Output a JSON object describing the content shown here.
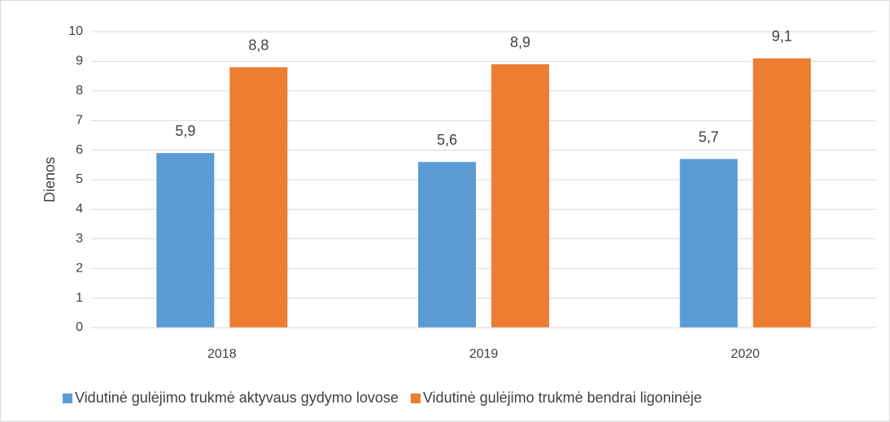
{
  "chart_data": {
    "type": "bar",
    "categories": [
      "2018",
      "2019",
      "2020"
    ],
    "series": [
      {
        "name": "Vidutinė gulėjimo trukmė aktyvaus gydymo lovose",
        "color": "#5b9bd5",
        "values": [
          5.9,
          5.6,
          5.7
        ],
        "value_labels": [
          "5,9",
          "5,6",
          "5,7"
        ]
      },
      {
        "name": "Vidutinė gulėjimo trukmė bendrai ligoninėje",
        "color": "#ed7d31",
        "values": [
          8.8,
          8.9,
          9.1
        ],
        "value_labels": [
          "8,8",
          "8,9",
          "9,1"
        ]
      }
    ],
    "ylabel": "Dienos",
    "ylim": [
      0,
      10
    ],
    "yticks": [
      0,
      1,
      2,
      3,
      4,
      5,
      6,
      7,
      8,
      9,
      10
    ],
    "grid": true,
    "legend": "bottom"
  }
}
